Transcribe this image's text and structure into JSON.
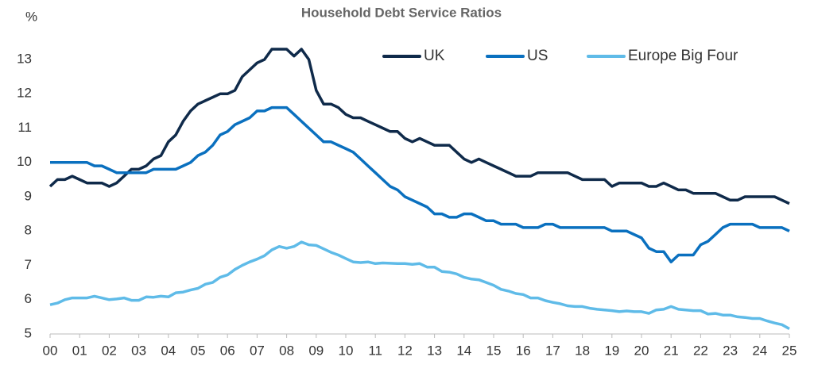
{
  "chart_data": {
    "type": "line",
    "title": "Household Debt Service Ratios",
    "y_label": "%",
    "x": [
      2000,
      2000.25,
      2000.5,
      2000.75,
      2001,
      2001.25,
      2001.5,
      2001.75,
      2002,
      2002.25,
      2002.5,
      2002.75,
      2003,
      2003.25,
      2003.5,
      2003.75,
      2004,
      2004.25,
      2004.5,
      2004.75,
      2005,
      2005.25,
      2005.5,
      2005.75,
      2006,
      2006.25,
      2006.5,
      2006.75,
      2007,
      2007.25,
      2007.5,
      2007.75,
      2008,
      2008.25,
      2008.5,
      2008.75,
      2009,
      2009.25,
      2009.5,
      2009.75,
      2010,
      2010.25,
      2010.5,
      2010.75,
      2011,
      2011.25,
      2011.5,
      2011.75,
      2012,
      2012.25,
      2012.5,
      2012.75,
      2013,
      2013.25,
      2013.5,
      2013.75,
      2014,
      2014.25,
      2014.5,
      2014.75,
      2015,
      2015.25,
      2015.5,
      2015.75,
      2016,
      2016.25,
      2016.5,
      2016.75,
      2017,
      2017.25,
      2017.5,
      2017.75,
      2018,
      2018.25,
      2018.5,
      2018.75,
      2019,
      2019.25,
      2019.5,
      2019.75,
      2020,
      2020.25,
      2020.5,
      2020.75,
      2021,
      2021.25,
      2021.5,
      2021.75,
      2022,
      2022.25,
      2022.5,
      2022.75,
      2023,
      2023.25,
      2023.5,
      2023.75,
      2024,
      2024.25,
      2024.5,
      2024.75,
      2025
    ],
    "series": [
      {
        "name": "UK",
        "color": "#0f2a4a",
        "values": [
          9.3,
          9.5,
          9.5,
          9.6,
          9.5,
          9.4,
          9.4,
          9.4,
          9.3,
          9.4,
          9.6,
          9.8,
          9.8,
          9.9,
          10.1,
          10.2,
          10.6,
          10.8,
          11.2,
          11.5,
          11.7,
          11.8,
          11.9,
          12.0,
          12.0,
          12.1,
          12.5,
          12.7,
          12.9,
          13.0,
          13.3,
          13.3,
          13.3,
          13.1,
          13.3,
          13.0,
          12.1,
          11.7,
          11.7,
          11.6,
          11.4,
          11.3,
          11.3,
          11.2,
          11.1,
          11.0,
          10.9,
          10.9,
          10.7,
          10.6,
          10.7,
          10.6,
          10.5,
          10.5,
          10.5,
          10.3,
          10.1,
          10.0,
          10.1,
          10.0,
          9.9,
          9.8,
          9.7,
          9.6,
          9.6,
          9.6,
          9.7,
          9.7,
          9.7,
          9.7,
          9.7,
          9.6,
          9.5,
          9.5,
          9.5,
          9.5,
          9.3,
          9.4,
          9.4,
          9.4,
          9.4,
          9.3,
          9.3,
          9.4,
          9.3,
          9.2,
          9.2,
          9.1,
          9.1,
          9.1,
          9.1,
          9.0,
          8.9,
          8.9,
          9.0,
          9.0,
          9.0,
          9.0,
          9.0,
          8.9,
          8.8
        ]
      },
      {
        "name": "US",
        "color": "#0a70bf",
        "values": [
          10.0,
          10.0,
          10.0,
          10.0,
          10.0,
          10.0,
          9.9,
          9.9,
          9.8,
          9.7,
          9.7,
          9.7,
          9.7,
          9.7,
          9.8,
          9.8,
          9.8,
          9.8,
          9.9,
          10.0,
          10.2,
          10.3,
          10.5,
          10.8,
          10.9,
          11.1,
          11.2,
          11.3,
          11.5,
          11.5,
          11.6,
          11.6,
          11.6,
          11.4,
          11.2,
          11.0,
          10.8,
          10.6,
          10.6,
          10.5,
          10.4,
          10.3,
          10.1,
          9.9,
          9.7,
          9.5,
          9.3,
          9.2,
          9.0,
          8.9,
          8.8,
          8.7,
          8.5,
          8.5,
          8.4,
          8.4,
          8.5,
          8.5,
          8.4,
          8.3,
          8.3,
          8.2,
          8.2,
          8.2,
          8.1,
          8.1,
          8.1,
          8.2,
          8.2,
          8.1,
          8.1,
          8.1,
          8.1,
          8.1,
          8.1,
          8.1,
          8.0,
          8.0,
          8.0,
          7.9,
          7.8,
          7.5,
          7.4,
          7.4,
          7.1,
          7.3,
          7.3,
          7.3,
          7.6,
          7.7,
          7.9,
          8.1,
          8.2,
          8.2,
          8.2,
          8.2,
          8.1,
          8.1,
          8.1,
          8.1,
          8.0
        ]
      },
      {
        "name": "Europe Big Four",
        "color": "#5fbbe8",
        "values": [
          5.85,
          5.9,
          6.0,
          6.05,
          6.05,
          6.05,
          6.1,
          6.05,
          6.0,
          6.02,
          6.05,
          5.98,
          5.98,
          6.08,
          6.07,
          6.1,
          6.08,
          6.2,
          6.22,
          6.28,
          6.33,
          6.45,
          6.5,
          6.65,
          6.72,
          6.88,
          7.0,
          7.1,
          7.18,
          7.28,
          7.45,
          7.55,
          7.5,
          7.55,
          7.68,
          7.6,
          7.58,
          7.48,
          7.38,
          7.3,
          7.2,
          7.1,
          7.08,
          7.1,
          7.05,
          7.07,
          7.06,
          7.05,
          7.05,
          7.03,
          7.05,
          6.95,
          6.95,
          6.82,
          6.8,
          6.75,
          6.65,
          6.6,
          6.58,
          6.5,
          6.42,
          6.3,
          6.25,
          6.18,
          6.15,
          6.05,
          6.05,
          5.97,
          5.92,
          5.88,
          5.82,
          5.8,
          5.8,
          5.75,
          5.72,
          5.7,
          5.68,
          5.65,
          5.67,
          5.65,
          5.65,
          5.6,
          5.7,
          5.72,
          5.8,
          5.72,
          5.7,
          5.68,
          5.68,
          5.58,
          5.6,
          5.55,
          5.55,
          5.5,
          5.48,
          5.45,
          5.45,
          5.38,
          5.32,
          5.27,
          5.15
        ]
      }
    ],
    "xlim": [
      2000,
      2025
    ],
    "xticks": [
      {
        "value": 2000,
        "label": "00"
      },
      {
        "value": 2001,
        "label": "01"
      },
      {
        "value": 2002,
        "label": "02"
      },
      {
        "value": 2003,
        "label": "03"
      },
      {
        "value": 2004,
        "label": "04"
      },
      {
        "value": 2005,
        "label": "05"
      },
      {
        "value": 2006,
        "label": "06"
      },
      {
        "value": 2007,
        "label": "07"
      },
      {
        "value": 2008,
        "label": "08"
      },
      {
        "value": 2009,
        "label": "09"
      },
      {
        "value": 2010,
        "label": "10"
      },
      {
        "value": 2011,
        "label": "11"
      },
      {
        "value": 2012,
        "label": "12"
      },
      {
        "value": 2013,
        "label": "13"
      },
      {
        "value": 2014,
        "label": "14"
      },
      {
        "value": 2015,
        "label": "15"
      },
      {
        "value": 2016,
        "label": "16"
      },
      {
        "value": 2017,
        "label": "17"
      },
      {
        "value": 2018,
        "label": "18"
      },
      {
        "value": 2019,
        "label": "19"
      },
      {
        "value": 2020,
        "label": "20"
      },
      {
        "value": 2021,
        "label": "21"
      },
      {
        "value": 2022,
        "label": "22"
      },
      {
        "value": 2023,
        "label": "23"
      },
      {
        "value": 2024,
        "label": "24"
      },
      {
        "value": 2025,
        "label": "25"
      }
    ],
    "ylim": [
      5,
      13.5
    ],
    "yticks": [
      5,
      6,
      7,
      8,
      9,
      10,
      11,
      12,
      13
    ]
  }
}
